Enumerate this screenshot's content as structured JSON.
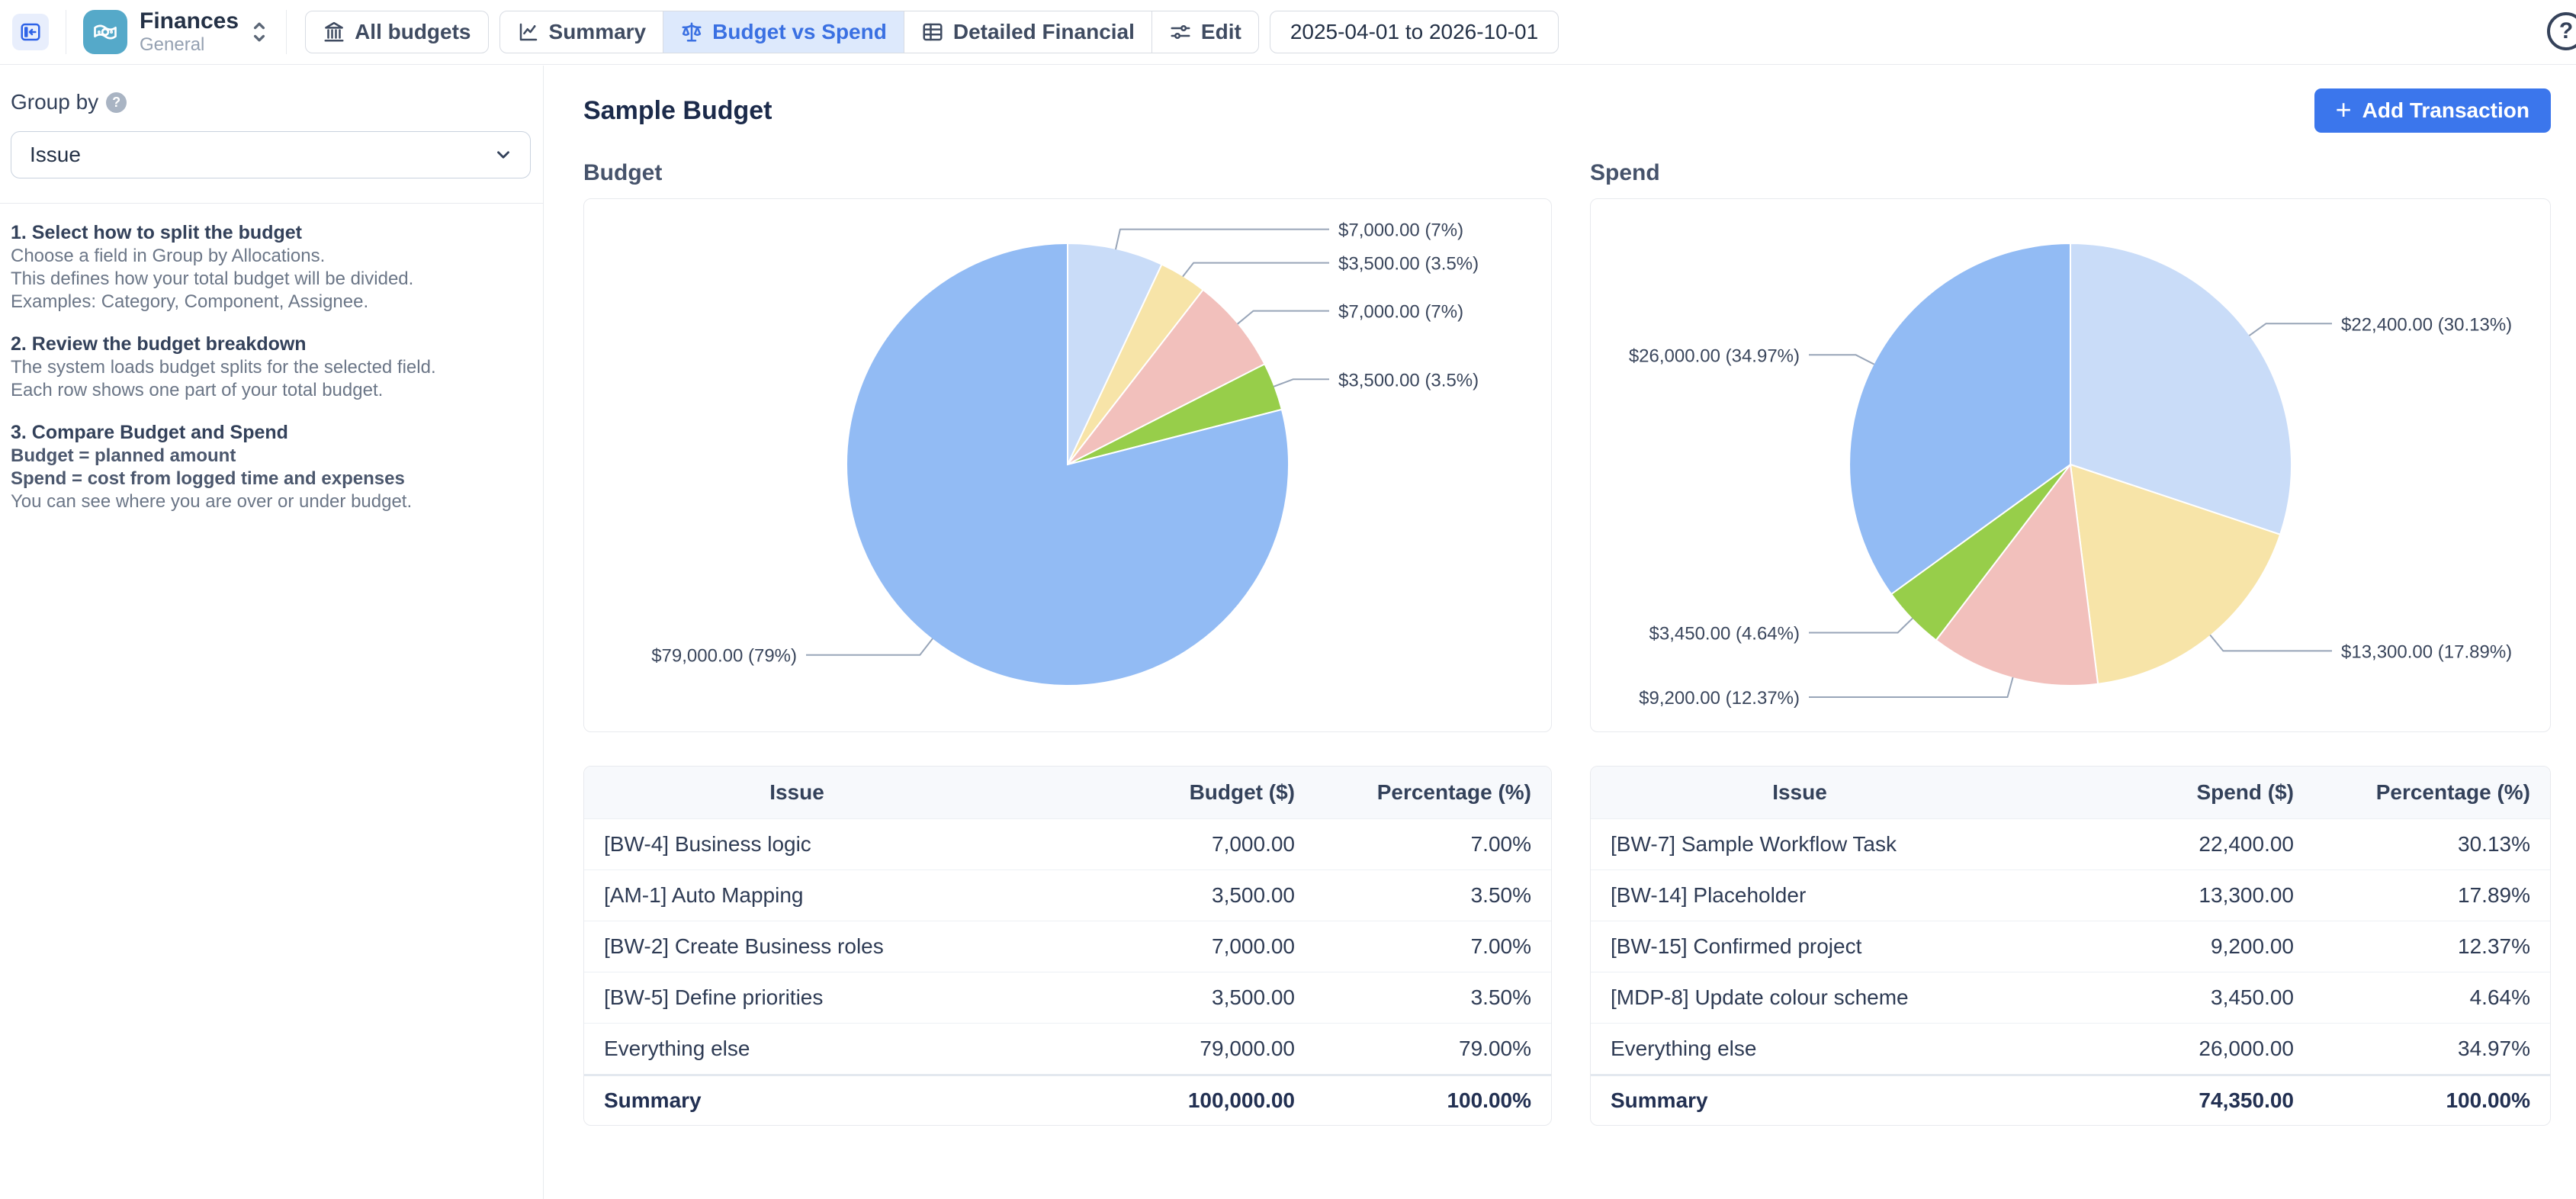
{
  "app": {
    "title": "Finances",
    "subtitle": "General"
  },
  "topbar": {
    "tabs": [
      {
        "label": "All budgets"
      },
      {
        "label": "Summary"
      },
      {
        "label": "Budget vs Spend",
        "active": true
      },
      {
        "label": "Detailed Financial"
      },
      {
        "label": "Edit"
      }
    ],
    "date_range": "2025-04-01 to 2026-10-01"
  },
  "icons": {
    "plus_glyph": "+",
    "help_glyph": "?"
  },
  "sidebar": {
    "group_by_label": "Group by",
    "group_by_value": "Issue",
    "sections": [
      {
        "heading": "1. Select how to split the budget",
        "lines": [
          {
            "text": "Choose a field in Group by Allocations.",
            "bold": false
          },
          {
            "text": "This defines how your total budget will be divided.",
            "bold": false
          },
          {
            "text": "Examples: Category, Component, Assignee.",
            "bold": false
          }
        ]
      },
      {
        "heading": "2. Review the budget breakdown",
        "lines": [
          {
            "text": "The system loads budget splits for the selected field.",
            "bold": false
          },
          {
            "text": "Each row shows one part of your total budget.",
            "bold": false
          }
        ]
      },
      {
        "heading": "3. Compare Budget and Spend",
        "lines": [
          {
            "text": "Budget = planned amount",
            "bold": true
          },
          {
            "text": "Spend = cost from logged time and expenses",
            "bold": true
          },
          {
            "text": "You can see where you are over or under budget.",
            "bold": false
          }
        ]
      }
    ]
  },
  "main": {
    "page_title": "Sample Budget",
    "add_transaction_label": "Add Transaction",
    "budget_section_title": "Budget",
    "spend_section_title": "Spend"
  },
  "chart_data": [
    {
      "type": "pie",
      "title": "Budget",
      "legend_position": "none",
      "labels_style": "callout",
      "slices": [
        {
          "label": "$7,000.00 (7%)",
          "value": 7000,
          "pct": 7,
          "color": "#c9dcf8"
        },
        {
          "label": "$3,500.00 (3.5%)",
          "value": 3500,
          "pct": 3.5,
          "color": "#f7e4a8"
        },
        {
          "label": "$7,000.00 (7%)",
          "value": 7000,
          "pct": 7,
          "color": "#f2c0bc"
        },
        {
          "label": "$3,500.00 (3.5%)",
          "value": 3500,
          "pct": 3.5,
          "color": "#97ce4a"
        },
        {
          "label": "$79,000.00 (79%)",
          "value": 79000,
          "pct": 79,
          "color": "#92bbf4"
        }
      ],
      "total": 100000
    },
    {
      "type": "pie",
      "title": "Spend",
      "legend_position": "none",
      "labels_style": "callout",
      "slices": [
        {
          "label": "$22,400.00 (30.13%)",
          "value": 22400,
          "pct": 30.13,
          "color": "#c9dcf8"
        },
        {
          "label": "$13,300.00 (17.89%)",
          "value": 13300,
          "pct": 17.89,
          "color": "#f7e4a8"
        },
        {
          "label": "$9,200.00 (12.37%)",
          "value": 9200,
          "pct": 12.37,
          "color": "#f2c0bc"
        },
        {
          "label": "$3,450.00 (4.64%)",
          "value": 3450,
          "pct": 4.64,
          "color": "#97ce4a"
        },
        {
          "label": "$26,000.00 (34.97%)",
          "value": 26000,
          "pct": 34.97,
          "color": "#92bbf4"
        }
      ],
      "total": 74350
    }
  ],
  "budget_table": {
    "columns": [
      "Issue",
      "Budget ($)",
      "Percentage (%)"
    ],
    "rows": [
      [
        "[BW-4] Business logic",
        "7,000.00",
        "7.00%"
      ],
      [
        "[AM-1] Auto Mapping",
        "3,500.00",
        "3.50%"
      ],
      [
        "[BW-2] Create Business roles",
        "7,000.00",
        "7.00%"
      ],
      [
        "[BW-5] Define priorities",
        "3,500.00",
        "3.50%"
      ],
      [
        "Everything else",
        "79,000.00",
        "79.00%"
      ]
    ],
    "summary": [
      "Summary",
      "100,000.00",
      "100.00%"
    ]
  },
  "spend_table": {
    "columns": [
      "Issue",
      "Spend ($)",
      "Percentage (%)"
    ],
    "rows": [
      [
        "[BW-7] Sample Workflow Task",
        "22,400.00",
        "30.13%"
      ],
      [
        "[BW-14] Placeholder",
        "13,300.00",
        "17.89%"
      ],
      [
        "[BW-15] Confirmed project",
        "9,200.00",
        "12.37%"
      ],
      [
        "[MDP-8] Update colour scheme",
        "3,450.00",
        "4.64%"
      ],
      [
        "Everything else",
        "26,000.00",
        "34.97%"
      ]
    ],
    "summary": [
      "Summary",
      "74,350.00",
      "100.00%"
    ]
  },
  "colors": {
    "accent": "#3b76ec",
    "active_tab_bg": "#dde9fc",
    "active_tab_text": "#3a70e2",
    "leader_line": "#98a5b8",
    "pie_blue": "#92bbf4",
    "pie_light_blue": "#c9dcf8",
    "pie_yellow": "#f7e4a8",
    "pie_pink": "#f2c0bc",
    "pie_green": "#97ce4a"
  }
}
